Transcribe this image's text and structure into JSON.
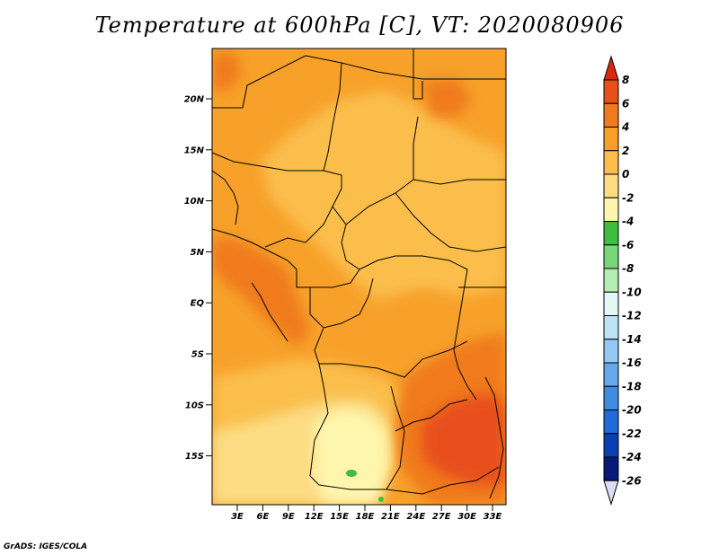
{
  "title": "Temperature at 600hPa [C], VT: 2020080906",
  "credit": "GrADS: IGES/COLA",
  "map": {
    "lat_ticks": [
      "20N",
      "15N",
      "10N",
      "5N",
      "EQ",
      "5S",
      "10S",
      "15S"
    ],
    "lon_ticks": [
      "3E",
      "6E",
      "9E",
      "12E",
      "15E",
      "18E",
      "21E",
      "24E",
      "27E",
      "30E",
      "33E"
    ]
  },
  "colorbar": {
    "labels": [
      "8",
      "6",
      "4",
      "2",
      "0",
      "-2",
      "-4",
      "-6",
      "-8",
      "-10",
      "-12",
      "-14",
      "-16",
      "-18",
      "-20",
      "-22",
      "-24",
      "-26"
    ],
    "colors": [
      "#d82b0d",
      "#e8501a",
      "#f07a1e",
      "#f7a12a",
      "#fbbe4c",
      "#fcdc83",
      "#fff6ae",
      "#3ebd3e",
      "#7ad67a",
      "#b6ecb2",
      "#e3f7f7",
      "#bfe3f6",
      "#94c8f2",
      "#66a9ea",
      "#3f8ce0",
      "#1f6cd8",
      "#0a3fb4",
      "#061a7a",
      "#dcdcf4"
    ]
  }
}
